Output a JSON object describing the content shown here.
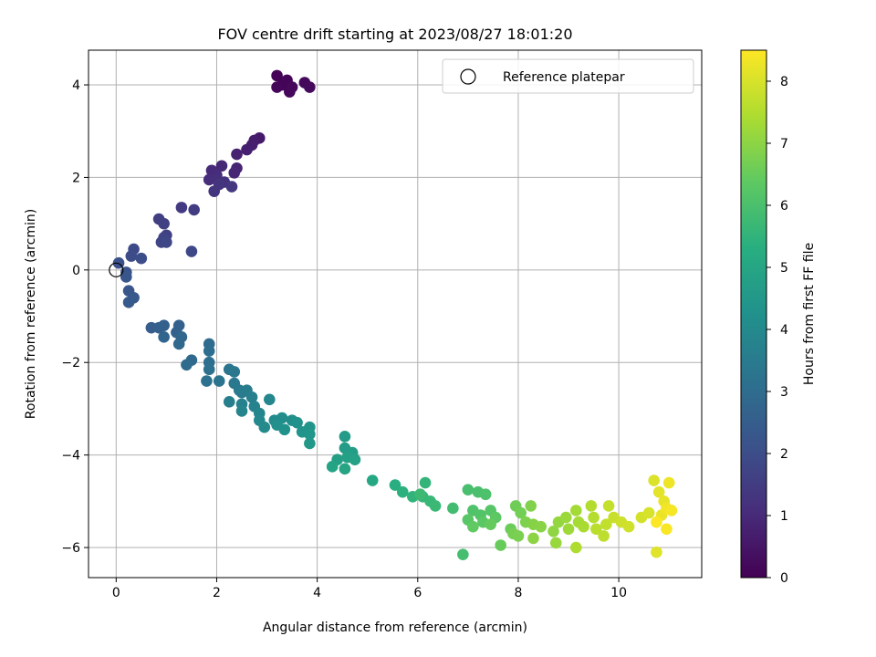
{
  "chart_data": {
    "type": "scatter",
    "title": "FOV centre drift starting at 2023/08/27 18:01:20",
    "xlabel": "Angular distance from reference (arcmin)",
    "ylabel": "Rotation from reference (arcmin)",
    "xlim": [
      -0.55,
      11.65
    ],
    "ylim": [
      -6.65,
      4.75
    ],
    "xticks": [
      "0",
      "2",
      "4",
      "6",
      "8",
      "10"
    ],
    "yticks": [
      "−6",
      "−4",
      "−2",
      "0",
      "2",
      "4"
    ],
    "grid": true,
    "legend": {
      "placement": "top-right",
      "entries": [
        "Reference platepar"
      ]
    },
    "reference_point": {
      "x": 0,
      "y": 0
    },
    "colorbar": {
      "label": "Hours from first FF file",
      "range": [
        0,
        8.5
      ],
      "ticks": [
        "0",
        "1",
        "2",
        "3",
        "4",
        "5",
        "6",
        "7",
        "8"
      ],
      "colormap": "viridis"
    },
    "points": [
      {
        "x": 3.2,
        "y": 4.2,
        "c": 0.05
      },
      {
        "x": 3.4,
        "y": 4.1,
        "c": 0.08
      },
      {
        "x": 3.3,
        "y": 4.0,
        "c": 0.1
      },
      {
        "x": 3.2,
        "y": 3.95,
        "c": 0.12
      },
      {
        "x": 3.45,
        "y": 3.85,
        "c": 0.15
      },
      {
        "x": 3.5,
        "y": 3.95,
        "c": 0.18
      },
      {
        "x": 3.75,
        "y": 4.05,
        "c": 0.2
      },
      {
        "x": 3.85,
        "y": 3.95,
        "c": 0.22
      },
      {
        "x": 2.85,
        "y": 2.85,
        "c": 0.6
      },
      {
        "x": 2.75,
        "y": 2.8,
        "c": 0.65
      },
      {
        "x": 2.7,
        "y": 2.7,
        "c": 0.7
      },
      {
        "x": 2.6,
        "y": 2.6,
        "c": 0.75
      },
      {
        "x": 2.4,
        "y": 2.5,
        "c": 0.8
      },
      {
        "x": 2.4,
        "y": 2.2,
        "c": 0.85
      },
      {
        "x": 2.35,
        "y": 2.1,
        "c": 0.9
      },
      {
        "x": 2.1,
        "y": 2.25,
        "c": 0.95
      },
      {
        "x": 1.9,
        "y": 2.15,
        "c": 1.0
      },
      {
        "x": 2.0,
        "y": 2.05,
        "c": 1.05
      },
      {
        "x": 1.85,
        "y": 1.95,
        "c": 1.1
      },
      {
        "x": 2.0,
        "y": 1.95,
        "c": 1.15
      },
      {
        "x": 2.15,
        "y": 1.9,
        "c": 1.2
      },
      {
        "x": 2.05,
        "y": 1.85,
        "c": 1.25
      },
      {
        "x": 1.95,
        "y": 1.7,
        "c": 1.3
      },
      {
        "x": 2.3,
        "y": 1.8,
        "c": 1.35
      },
      {
        "x": 1.3,
        "y": 1.35,
        "c": 1.45
      },
      {
        "x": 1.55,
        "y": 1.3,
        "c": 1.5
      },
      {
        "x": 0.85,
        "y": 1.1,
        "c": 1.55
      },
      {
        "x": 0.95,
        "y": 1.0,
        "c": 1.6
      },
      {
        "x": 1.0,
        "y": 0.75,
        "c": 1.65
      },
      {
        "x": 0.95,
        "y": 0.7,
        "c": 1.7
      },
      {
        "x": 0.9,
        "y": 0.6,
        "c": 1.75
      },
      {
        "x": 1.0,
        "y": 0.6,
        "c": 1.8
      },
      {
        "x": 1.5,
        "y": 0.4,
        "c": 1.85
      },
      {
        "x": 0.35,
        "y": 0.45,
        "c": 1.9
      },
      {
        "x": 0.3,
        "y": 0.3,
        "c": 1.95
      },
      {
        "x": 0.5,
        "y": 0.25,
        "c": 2.0
      },
      {
        "x": 0.05,
        "y": 0.15,
        "c": 2.1
      },
      {
        "x": 0.2,
        "y": -0.05,
        "c": 2.2
      },
      {
        "x": 0.2,
        "y": -0.15,
        "c": 2.25
      },
      {
        "x": 0.25,
        "y": -0.45,
        "c": 2.3
      },
      {
        "x": 0.35,
        "y": -0.6,
        "c": 2.35
      },
      {
        "x": 0.25,
        "y": -0.7,
        "c": 2.4
      },
      {
        "x": 0.7,
        "y": -1.25,
        "c": 2.5
      },
      {
        "x": 0.85,
        "y": -1.25,
        "c": 2.55
      },
      {
        "x": 0.95,
        "y": -1.2,
        "c": 2.6
      },
      {
        "x": 1.25,
        "y": -1.2,
        "c": 2.65
      },
      {
        "x": 1.2,
        "y": -1.35,
        "c": 2.7
      },
      {
        "x": 0.95,
        "y": -1.45,
        "c": 2.75
      },
      {
        "x": 1.3,
        "y": -1.45,
        "c": 2.8
      },
      {
        "x": 1.25,
        "y": -1.6,
        "c": 2.85
      },
      {
        "x": 1.5,
        "y": -1.95,
        "c": 2.9
      },
      {
        "x": 1.4,
        "y": -2.05,
        "c": 2.95
      },
      {
        "x": 1.85,
        "y": -1.6,
        "c": 3.0
      },
      {
        "x": 1.85,
        "y": -1.75,
        "c": 3.05
      },
      {
        "x": 1.85,
        "y": -2.0,
        "c": 3.1
      },
      {
        "x": 1.85,
        "y": -2.15,
        "c": 3.15
      },
      {
        "x": 1.8,
        "y": -2.4,
        "c": 3.2
      },
      {
        "x": 2.05,
        "y": -2.4,
        "c": 3.25
      },
      {
        "x": 2.25,
        "y": -2.15,
        "c": 3.3
      },
      {
        "x": 2.35,
        "y": -2.2,
        "c": 3.35
      },
      {
        "x": 2.35,
        "y": -2.45,
        "c": 3.4
      },
      {
        "x": 2.45,
        "y": -2.6,
        "c": 3.45
      },
      {
        "x": 2.5,
        "y": -2.65,
        "c": 3.5
      },
      {
        "x": 2.6,
        "y": -2.6,
        "c": 3.55
      },
      {
        "x": 2.7,
        "y": -2.75,
        "c": 3.6
      },
      {
        "x": 2.25,
        "y": -2.85,
        "c": 3.65
      },
      {
        "x": 2.5,
        "y": -2.9,
        "c": 3.7
      },
      {
        "x": 2.75,
        "y": -2.95,
        "c": 3.75
      },
      {
        "x": 2.5,
        "y": -3.05,
        "c": 3.8
      },
      {
        "x": 2.85,
        "y": -3.1,
        "c": 3.85
      },
      {
        "x": 3.05,
        "y": -2.8,
        "c": 3.9
      },
      {
        "x": 2.85,
        "y": -3.25,
        "c": 3.95
      },
      {
        "x": 2.95,
        "y": -3.4,
        "c": 4.0
      },
      {
        "x": 3.15,
        "y": -3.25,
        "c": 4.05
      },
      {
        "x": 3.3,
        "y": -3.2,
        "c": 4.1
      },
      {
        "x": 3.5,
        "y": -3.25,
        "c": 4.15
      },
      {
        "x": 3.2,
        "y": -3.35,
        "c": 4.2
      },
      {
        "x": 3.35,
        "y": -3.45,
        "c": 4.25
      },
      {
        "x": 3.6,
        "y": -3.3,
        "c": 4.3
      },
      {
        "x": 3.7,
        "y": -3.5,
        "c": 4.35
      },
      {
        "x": 3.85,
        "y": -3.4,
        "c": 4.4
      },
      {
        "x": 3.85,
        "y": -3.55,
        "c": 4.45
      },
      {
        "x": 3.85,
        "y": -3.75,
        "c": 4.5
      },
      {
        "x": 4.55,
        "y": -3.6,
        "c": 4.6
      },
      {
        "x": 4.55,
        "y": -3.85,
        "c": 4.65
      },
      {
        "x": 4.7,
        "y": -3.95,
        "c": 4.7
      },
      {
        "x": 4.4,
        "y": -4.1,
        "c": 4.75
      },
      {
        "x": 4.6,
        "y": -4.05,
        "c": 4.8
      },
      {
        "x": 4.75,
        "y": -4.1,
        "c": 4.85
      },
      {
        "x": 4.3,
        "y": -4.25,
        "c": 4.9
      },
      {
        "x": 4.55,
        "y": -4.3,
        "c": 4.95
      },
      {
        "x": 5.1,
        "y": -4.55,
        "c": 5.05
      },
      {
        "x": 5.55,
        "y": -4.65,
        "c": 5.3
      },
      {
        "x": 5.7,
        "y": -4.8,
        "c": 5.4
      },
      {
        "x": 5.9,
        "y": -4.9,
        "c": 5.5
      },
      {
        "x": 6.15,
        "y": -4.6,
        "c": 5.55
      },
      {
        "x": 6.1,
        "y": -4.9,
        "c": 5.6
      },
      {
        "x": 6.25,
        "y": -5.0,
        "c": 5.65
      },
      {
        "x": 6.35,
        "y": -5.1,
        "c": 5.7
      },
      {
        "x": 6.05,
        "y": -4.85,
        "c": 5.75
      },
      {
        "x": 6.7,
        "y": -5.15,
        "c": 5.85
      },
      {
        "x": 6.9,
        "y": -6.15,
        "c": 5.9
      },
      {
        "x": 7.0,
        "y": -4.75,
        "c": 5.95
      },
      {
        "x": 7.2,
        "y": -4.8,
        "c": 6.0
      },
      {
        "x": 7.35,
        "y": -4.85,
        "c": 6.05
      },
      {
        "x": 7.1,
        "y": -5.2,
        "c": 6.1
      },
      {
        "x": 7.25,
        "y": -5.3,
        "c": 6.15
      },
      {
        "x": 7.45,
        "y": -5.2,
        "c": 6.2
      },
      {
        "x": 7.0,
        "y": -5.4,
        "c": 6.25
      },
      {
        "x": 7.3,
        "y": -5.45,
        "c": 6.3
      },
      {
        "x": 7.55,
        "y": -5.35,
        "c": 6.35
      },
      {
        "x": 7.1,
        "y": -5.55,
        "c": 6.4
      },
      {
        "x": 7.45,
        "y": -5.5,
        "c": 6.45
      },
      {
        "x": 7.65,
        "y": -5.95,
        "c": 6.5
      },
      {
        "x": 7.85,
        "y": -5.6,
        "c": 6.55
      },
      {
        "x": 7.95,
        "y": -5.1,
        "c": 6.6
      },
      {
        "x": 8.05,
        "y": -5.25,
        "c": 6.65
      },
      {
        "x": 7.9,
        "y": -5.7,
        "c": 6.7
      },
      {
        "x": 8.0,
        "y": -5.75,
        "c": 6.75
      },
      {
        "x": 8.15,
        "y": -5.45,
        "c": 6.8
      },
      {
        "x": 8.25,
        "y": -5.1,
        "c": 6.85
      },
      {
        "x": 8.3,
        "y": -5.5,
        "c": 6.9
      },
      {
        "x": 8.45,
        "y": -5.55,
        "c": 6.95
      },
      {
        "x": 8.3,
        "y": -5.8,
        "c": 7.0
      },
      {
        "x": 8.7,
        "y": -5.65,
        "c": 7.05
      },
      {
        "x": 8.8,
        "y": -5.45,
        "c": 7.1
      },
      {
        "x": 8.75,
        "y": -5.9,
        "c": 7.15
      },
      {
        "x": 8.95,
        "y": -5.35,
        "c": 7.2
      },
      {
        "x": 9.0,
        "y": -5.6,
        "c": 7.25
      },
      {
        "x": 9.15,
        "y": -5.2,
        "c": 7.3
      },
      {
        "x": 9.2,
        "y": -5.45,
        "c": 7.35
      },
      {
        "x": 9.3,
        "y": -5.55,
        "c": 7.4
      },
      {
        "x": 9.15,
        "y": -6.0,
        "c": 7.45
      },
      {
        "x": 9.45,
        "y": -5.1,
        "c": 7.5
      },
      {
        "x": 9.5,
        "y": -5.35,
        "c": 7.55
      },
      {
        "x": 9.55,
        "y": -5.6,
        "c": 7.6
      },
      {
        "x": 9.7,
        "y": -5.75,
        "c": 7.65
      },
      {
        "x": 9.75,
        "y": -5.5,
        "c": 7.7
      },
      {
        "x": 9.8,
        "y": -5.1,
        "c": 7.75
      },
      {
        "x": 9.9,
        "y": -5.35,
        "c": 7.8
      },
      {
        "x": 10.05,
        "y": -5.45,
        "c": 7.85
      },
      {
        "x": 10.2,
        "y": -5.55,
        "c": 7.9
      },
      {
        "x": 10.45,
        "y": -5.35,
        "c": 7.95
      },
      {
        "x": 10.6,
        "y": -5.25,
        "c": 8.0
      },
      {
        "x": 10.7,
        "y": -4.55,
        "c": 8.05
      },
      {
        "x": 10.75,
        "y": -6.1,
        "c": 8.1
      },
      {
        "x": 10.8,
        "y": -4.8,
        "c": 8.15
      },
      {
        "x": 10.9,
        "y": -5.0,
        "c": 8.2
      },
      {
        "x": 10.85,
        "y": -5.3,
        "c": 8.25
      },
      {
        "x": 11.0,
        "y": -4.6,
        "c": 8.3
      },
      {
        "x": 10.95,
        "y": -5.15,
        "c": 8.35
      },
      {
        "x": 11.05,
        "y": -5.2,
        "c": 8.4
      },
      {
        "x": 10.95,
        "y": -5.6,
        "c": 8.45
      },
      {
        "x": 10.75,
        "y": -5.45,
        "c": 8.48
      }
    ]
  }
}
